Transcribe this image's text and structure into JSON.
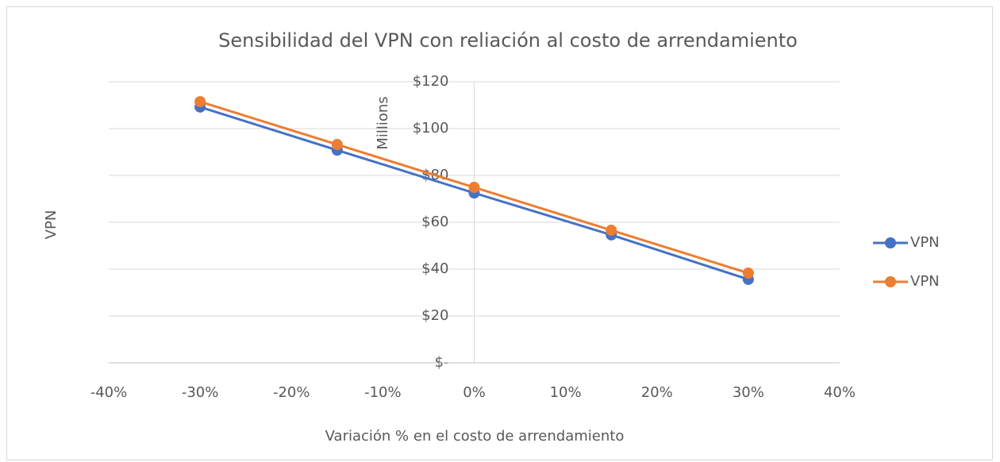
{
  "chart_data": {
    "type": "line",
    "title": "Sensibilidad del VPN con reliación al costo de arrendamiento",
    "x_label": "Variación % en el costo de arrendamiento",
    "y_label": "VPN",
    "y_unit_label": "Millions",
    "x": [
      -30,
      -15,
      0,
      15,
      30
    ],
    "series": [
      {
        "name": "VPN",
        "color": "#4472c4",
        "values": [
          109.2,
          90.8,
          72.5,
          54.6,
          35.6
        ]
      },
      {
        "name": "VPN",
        "color": "#ed7d31",
        "values": [
          111.5,
          93.2,
          74.9,
          56.6,
          38.3
        ]
      }
    ],
    "xlim": [
      -40,
      40
    ],
    "xticks": [
      {
        "value": -40,
        "label": "-40%"
      },
      {
        "value": -30,
        "label": "-30%"
      },
      {
        "value": -20,
        "label": "-20%"
      },
      {
        "value": -10,
        "label": "-10%"
      },
      {
        "value": 0,
        "label": "0%"
      },
      {
        "value": 10,
        "label": "10%"
      },
      {
        "value": 20,
        "label": "20%"
      },
      {
        "value": 30,
        "label": "30%"
      },
      {
        "value": 40,
        "label": "40%"
      }
    ],
    "ylim": [
      0,
      120
    ],
    "yticks": [
      {
        "value": 0,
        "label": "$-"
      },
      {
        "value": 20,
        "label": "$20"
      },
      {
        "value": 40,
        "label": "$40"
      },
      {
        "value": 60,
        "label": "$60"
      },
      {
        "value": 80,
        "label": "$80"
      },
      {
        "value": 100,
        "label": "$100"
      },
      {
        "value": 120,
        "label": "$120"
      }
    ],
    "grid": true,
    "legend": "right"
  }
}
